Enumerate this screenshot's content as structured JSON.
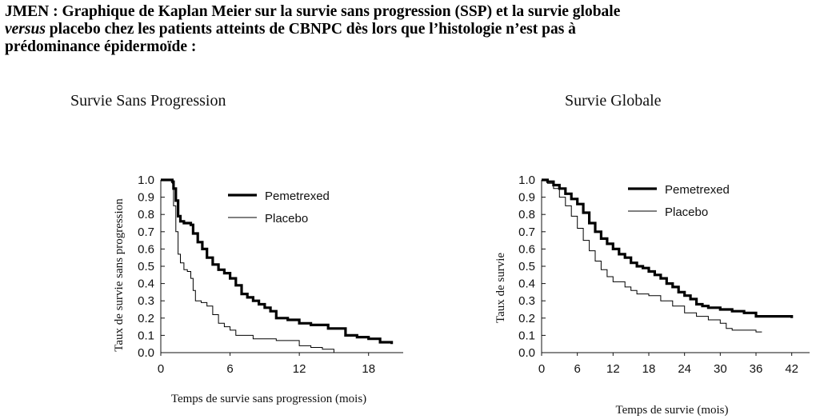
{
  "heading": {
    "line1": "JMEN : Graphique de Kaplan Meier sur la survie sans progression (SSP) et la survie globale",
    "line2_italic": "versus",
    "line2_rest": " placebo chez les patients atteints de CBNPC dès lors que l’histologie n’est pas à",
    "line3": "prédominance épidermoïde :"
  },
  "chart_data": [
    {
      "type": "line",
      "title": "Survie Sans Progression",
      "xlabel": "Temps de survie sans progression (mois)",
      "ylabel": "Taux de survie sans progression",
      "xlim": [
        0,
        21
      ],
      "ylim": [
        0,
        1
      ],
      "xticks": [
        0,
        6,
        12,
        18
      ],
      "yticks": [
        "0.0",
        "0.1",
        "0.2",
        "0.3",
        "0.4",
        "0.5",
        "0.6",
        "0.7",
        "0.8",
        "0.9",
        "1.0"
      ],
      "legend_position": "top-right",
      "series": [
        {
          "name": "Pemetrexed",
          "style": "thick",
          "x": [
            0,
            1.0,
            1.1,
            1.3,
            1.5,
            1.7,
            2.0,
            2.6,
            2.8,
            3.2,
            3.6,
            4.0,
            4.5,
            5.0,
            5.5,
            6.0,
            6.5,
            7.0,
            7.5,
            8.0,
            8.5,
            9.0,
            9.5,
            10.0,
            11.0,
            12.0,
            13.0,
            14.5,
            16.0,
            17.0,
            18.0,
            19.0,
            20.0
          ],
          "y": [
            1.0,
            0.99,
            0.95,
            0.88,
            0.79,
            0.76,
            0.75,
            0.74,
            0.69,
            0.64,
            0.6,
            0.55,
            0.51,
            0.48,
            0.46,
            0.43,
            0.39,
            0.34,
            0.32,
            0.3,
            0.28,
            0.26,
            0.24,
            0.2,
            0.19,
            0.17,
            0.16,
            0.14,
            0.1,
            0.09,
            0.08,
            0.06,
            0.05
          ]
        },
        {
          "name": "Placebo",
          "style": "thin",
          "x": [
            0,
            1.0,
            1.1,
            1.3,
            1.5,
            1.7,
            2.0,
            2.3,
            2.6,
            2.8,
            3.0,
            3.5,
            4.0,
            4.5,
            5.0,
            5.5,
            6.0,
            6.5,
            8.0,
            10.0,
            11.5,
            12.0,
            13.0,
            14.0,
            15.0
          ],
          "y": [
            1.0,
            0.98,
            0.85,
            0.7,
            0.57,
            0.52,
            0.48,
            0.47,
            0.43,
            0.36,
            0.3,
            0.29,
            0.27,
            0.22,
            0.17,
            0.15,
            0.13,
            0.1,
            0.08,
            0.07,
            0.07,
            0.04,
            0.03,
            0.02,
            0.0
          ]
        }
      ]
    },
    {
      "type": "line",
      "title": "Survie Globale",
      "xlabel": "Temps de survie (mois)",
      "ylabel": "Taux de survie",
      "xlim": [
        0,
        45
      ],
      "ylim": [
        0,
        1
      ],
      "xticks": [
        0,
        6,
        12,
        18,
        24,
        30,
        36,
        42
      ],
      "yticks": [
        "0.0",
        "0.1",
        "0.2",
        "0.3",
        "0.4",
        "0.5",
        "0.6",
        "0.7",
        "0.8",
        "0.9",
        "1.0"
      ],
      "legend_position": "top-right",
      "series": [
        {
          "name": "Pemetrexed",
          "style": "thick",
          "x": [
            0,
            1,
            2,
            3,
            4,
            5,
            6,
            7,
            8,
            9,
            10,
            11,
            12,
            13,
            14,
            15,
            16,
            17,
            18,
            19,
            20,
            21,
            22,
            23,
            24,
            25,
            26,
            27,
            28,
            30,
            32,
            34,
            36,
            38,
            40,
            42
          ],
          "y": [
            1.0,
            0.99,
            0.97,
            0.95,
            0.92,
            0.89,
            0.86,
            0.81,
            0.75,
            0.7,
            0.66,
            0.63,
            0.6,
            0.57,
            0.55,
            0.52,
            0.5,
            0.49,
            0.47,
            0.45,
            0.43,
            0.4,
            0.38,
            0.35,
            0.33,
            0.31,
            0.28,
            0.27,
            0.26,
            0.25,
            0.24,
            0.23,
            0.21,
            0.21,
            0.21,
            0.2
          ]
        },
        {
          "name": "Placebo",
          "style": "thin",
          "x": [
            0,
            1,
            2,
            3,
            4,
            5,
            6,
            7,
            8,
            9,
            10,
            11,
            12,
            14,
            15,
            16,
            18,
            20,
            22,
            24,
            26,
            28,
            30,
            31,
            32,
            34,
            36,
            37
          ],
          "y": [
            1.0,
            0.98,
            0.95,
            0.9,
            0.85,
            0.79,
            0.72,
            0.65,
            0.59,
            0.53,
            0.48,
            0.44,
            0.41,
            0.38,
            0.36,
            0.34,
            0.33,
            0.3,
            0.27,
            0.23,
            0.21,
            0.19,
            0.17,
            0.14,
            0.13,
            0.13,
            0.12,
            0.12
          ]
        }
      ]
    }
  ]
}
